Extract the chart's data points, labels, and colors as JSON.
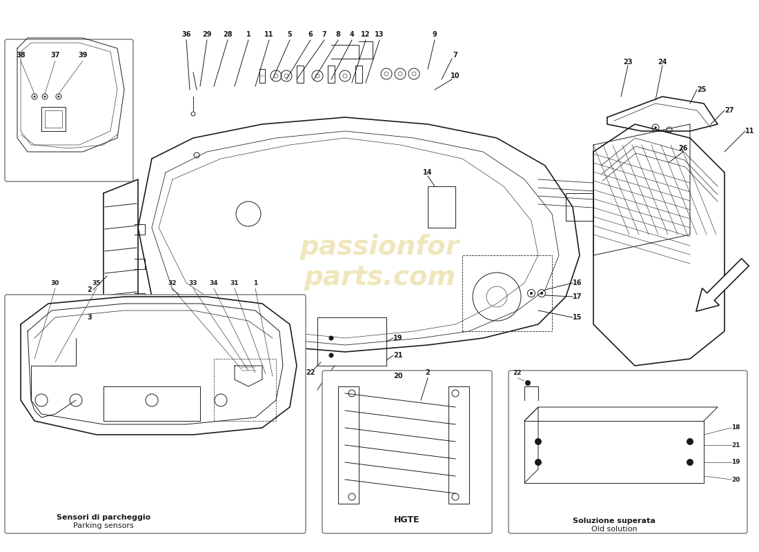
{
  "background_color": "#ffffff",
  "line_color": "#1a1a1a",
  "watermark_color": "#d4b840",
  "watermark_alpha": 0.35,
  "text_parking_it": "Sensori di parcheggio",
  "text_parking_en": "Parking sensors",
  "text_hgte": "HGTE",
  "text_old_sol_it": "Soluzione superata",
  "text_old_sol_en": "Old solution"
}
